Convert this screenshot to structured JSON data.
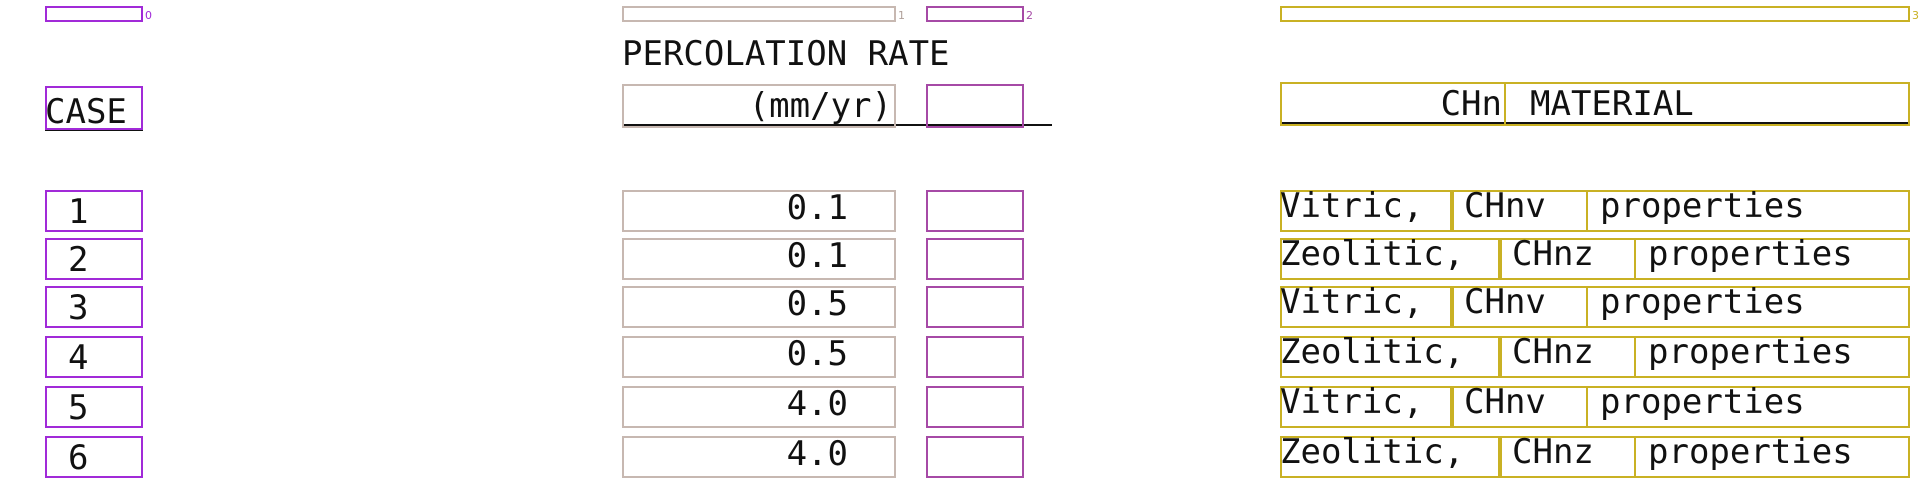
{
  "header": {
    "percolation_top": "PERCOLATION RATE",
    "percolation_bottom": "(mm/yr)",
    "case": "CASE",
    "chn": "CHn",
    "material": "MATERIAL"
  },
  "rows": [
    {
      "case": "1",
      "rate": "0.1",
      "type": "Vitric,",
      "chn": "CHnv",
      "props": "properties"
    },
    {
      "case": "2",
      "rate": "0.1",
      "type": "Zeolitic,",
      "chn": "CHnz",
      "props": "properties"
    },
    {
      "case": "3",
      "rate": "0.5",
      "type": "Vitric,",
      "chn": "CHnv",
      "props": "properties"
    },
    {
      "case": "4",
      "rate": "0.5",
      "type": "Zeolitic,",
      "chn": "CHnz",
      "props": "properties"
    },
    {
      "case": "5",
      "rate": "4.0",
      "type": "Vitric,",
      "chn": "CHnv",
      "props": "properties"
    },
    {
      "case": "6",
      "rate": "4.0",
      "type": "Zeolitic,",
      "chn": "CHnz",
      "props": "properties"
    }
  ],
  "colors": {
    "case_box": "#a12ad8",
    "percolation_box": "#c7b8b1",
    "rate_box": "#a64aa6",
    "material_box": "#c9b124"
  }
}
